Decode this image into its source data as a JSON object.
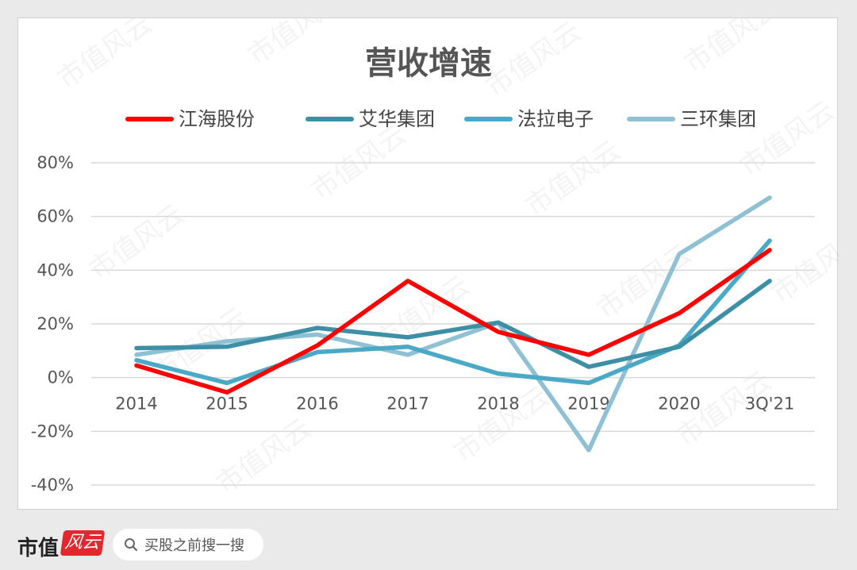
{
  "chart_data": {
    "type": "line",
    "title": "营收增速",
    "categories": [
      "2014",
      "2015",
      "2016",
      "2017",
      "2018",
      "2019",
      "2020",
      "3Q'21"
    ],
    "ylim": [
      -40,
      80
    ],
    "yticks": [
      80,
      60,
      40,
      20,
      0,
      -20,
      -40
    ],
    "ytick_labels": [
      "80%",
      "60%",
      "40%",
      "20%",
      "0%",
      "-20%",
      "-40%"
    ],
    "grid": true,
    "legend_position": "top",
    "series": [
      {
        "name": "江海股份",
        "color": "#ff0000",
        "values": [
          4.5,
          -5.5,
          12,
          36,
          17,
          8.5,
          24,
          47.5
        ]
      },
      {
        "name": "艾华集团",
        "color": "#3d8fa5",
        "values": [
          11,
          11.5,
          18.5,
          15,
          20.5,
          4,
          11.5,
          36
        ]
      },
      {
        "name": "法拉电子",
        "color": "#4aa9c6",
        "values": [
          6.5,
          -2,
          9.5,
          11.5,
          1.5,
          -2,
          12,
          51
        ]
      },
      {
        "name": "三环集团",
        "color": "#8fc0d3",
        "values": [
          8.5,
          13.5,
          16,
          8.5,
          20.5,
          -27,
          46,
          67
        ]
      }
    ]
  },
  "watermark": "市值风云",
  "footer": {
    "brand": "市值",
    "logo_text": "风云",
    "search_placeholder": "买股之前搜一搜"
  }
}
